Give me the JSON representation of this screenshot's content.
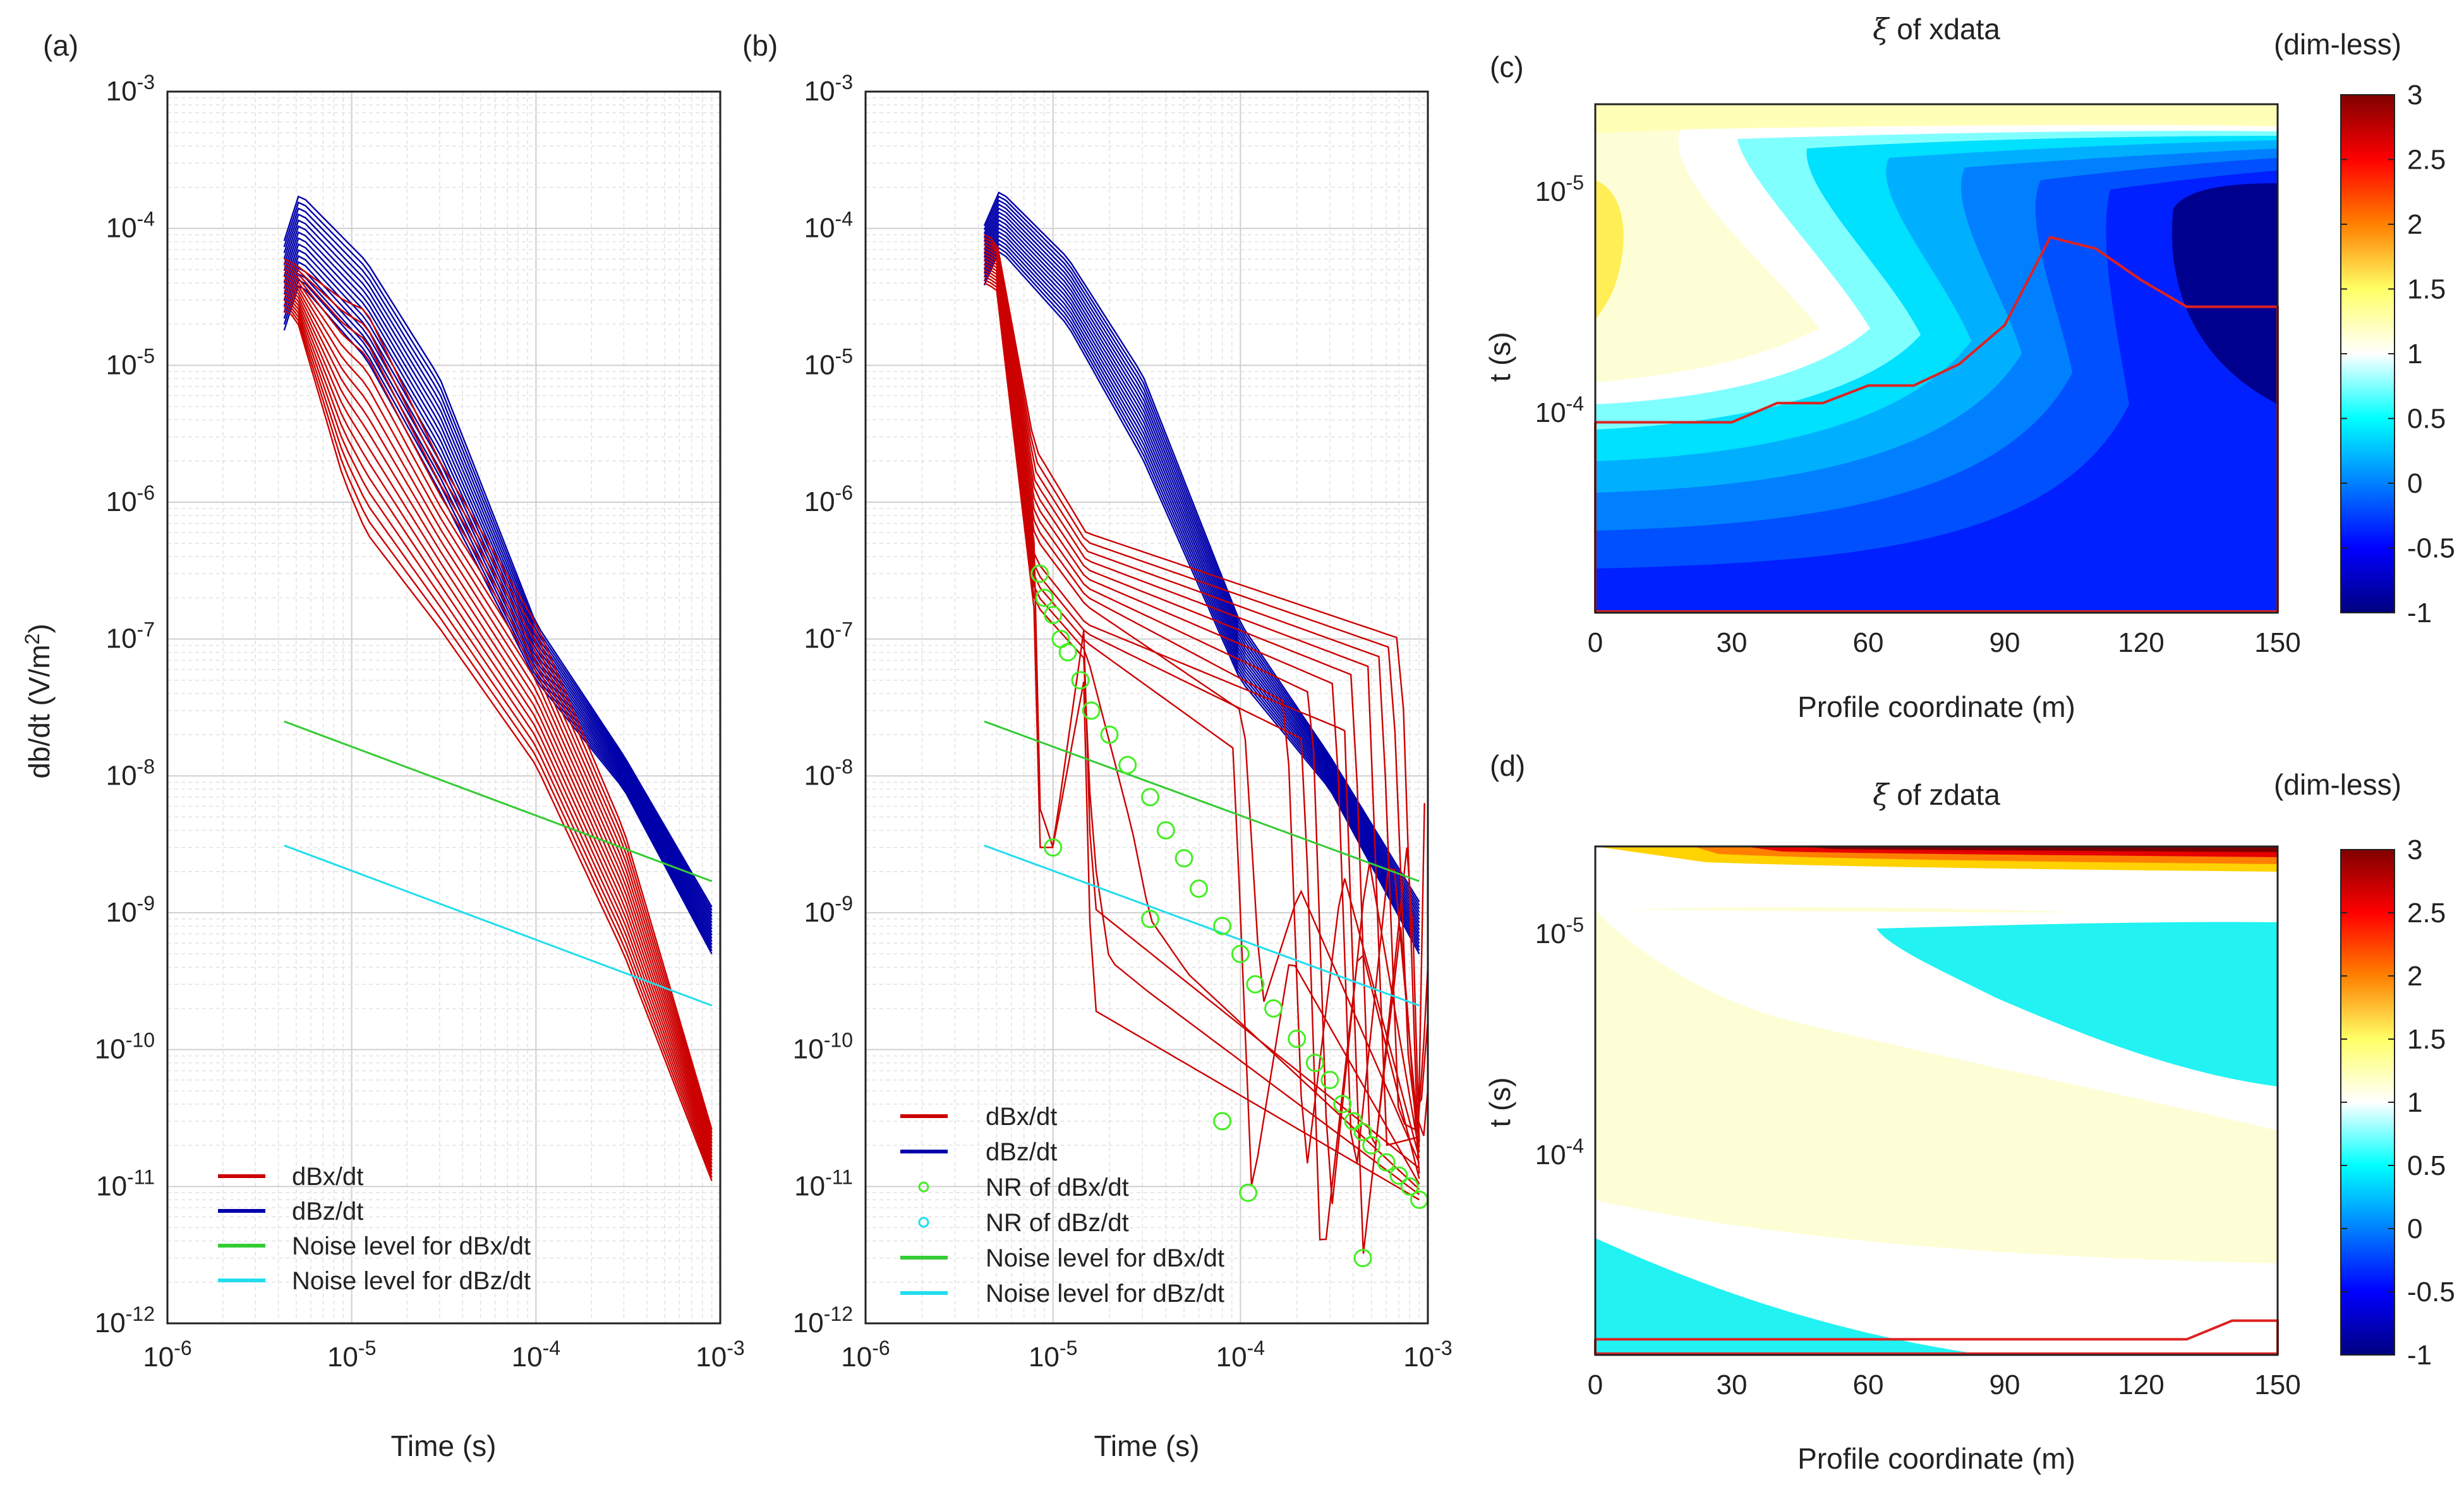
{
  "panels": {
    "a": {
      "label": "(a)"
    },
    "b": {
      "label": "(b)"
    },
    "c": {
      "label": "(c)",
      "title_sym": "ξ",
      "title_rest": " of xdata",
      "unit": "(dim-less)"
    },
    "d": {
      "label": "(d)",
      "title_sym": "ξ",
      "title_rest": " of zdata",
      "unit": "(dim-less)"
    }
  },
  "colors": {
    "dBx": "#cc0000",
    "dBz": "#0000aa",
    "noise_x": "#33cc33",
    "noise_z": "#22ddee",
    "nr_marker": "#44ee22",
    "boundary": "#dd2222"
  },
  "chart_data": [
    {
      "panel": "a",
      "type": "line",
      "xscale": "log",
      "yscale": "log",
      "xlim": [
        1e-06,
        0.001
      ],
      "ylim": [
        1e-12,
        0.001
      ],
      "xlabel": "Time (s)",
      "ylabel": "db/dt (V/m",
      "ylabel_sup": "2",
      "ylabel_end": ")",
      "x_tick_bases": [
        "10",
        "10",
        "10",
        "10"
      ],
      "x_tick_exps": [
        "-6",
        "-5",
        "-4",
        "-3"
      ],
      "x_tick_values": [
        1e-06,
        1e-05,
        0.0001,
        0.001
      ],
      "y_tick_bases": [
        "10",
        "10",
        "10",
        "10",
        "10",
        "10",
        "10",
        "10",
        "10",
        "10"
      ],
      "y_tick_exps": [
        "-12",
        "-11",
        "-10",
        "-9",
        "-8",
        "-7",
        "-6",
        "-5",
        "-4",
        "-3"
      ],
      "y_tick_values": [
        1e-12,
        1e-11,
        1e-10,
        1e-09,
        1e-08,
        1e-07,
        1e-06,
        1e-05,
        0.0001,
        0.001
      ],
      "grid": true,
      "legend_position": "bottom-left",
      "legend": [
        "dBx/dt",
        "dBz/dt",
        "Noise level for dBx/dt",
        "Noise level for dBz/dt"
      ],
      "series_families": {
        "dBz_count": 16,
        "dBz_peak_range": [
          4e-05,
          0.00018
        ],
        "dBz_end_range": [
          5e-10,
          1.1e-09
        ],
        "dBx_count": 16,
        "dBx_peak_range": [
          2.5e-05,
          6e-05
        ],
        "dBx_end_range": [
          1.1e-11,
          2.6e-11
        ]
      },
      "noise_x": {
        "x": [
          4.3e-06,
          0.0009
        ],
        "y": [
          2.5e-08,
          1.7e-09
        ]
      },
      "noise_z": {
        "x": [
          4.3e-06,
          0.0009
        ],
        "y": [
          3.1e-09,
          2.1e-10
        ]
      }
    },
    {
      "panel": "b",
      "type": "line",
      "xscale": "log",
      "yscale": "log",
      "xlim": [
        1e-06,
        0.001
      ],
      "ylim": [
        1e-12,
        0.001
      ],
      "xlabel": "Time (s)",
      "x_tick_bases": [
        "10",
        "10",
        "10",
        "10"
      ],
      "x_tick_exps": [
        "-6",
        "-5",
        "-4",
        "-3"
      ],
      "x_tick_values": [
        1e-06,
        1e-05,
        0.0001,
        0.001
      ],
      "y_tick_bases": [
        "10",
        "10",
        "10",
        "10",
        "10",
        "10",
        "10",
        "10",
        "10",
        "10"
      ],
      "y_tick_exps": [
        "-12",
        "-11",
        "-10",
        "-9",
        "-8",
        "-7",
        "-6",
        "-5",
        "-4",
        "-3"
      ],
      "y_tick_values": [
        1e-12,
        1e-11,
        1e-10,
        1e-09,
        1e-08,
        1e-07,
        1e-06,
        1e-05,
        0.0001,
        0.001
      ],
      "grid": true,
      "legend_position": "bottom-left",
      "legend": [
        "dBx/dt",
        "dBz/dt",
        "NR of dBx/dt",
        "NR of dBz/dt",
        "Noise level for dBx/dt",
        "Noise level for dBz/dt"
      ],
      "series_families": {
        "dBz_count": 16,
        "dBz_peak_range": [
          7e-05,
          0.00019
        ],
        "dBz_end_range": [
          5e-10,
          1.2e-09
        ],
        "dBx_count": 16,
        "dBx_peak_range": [
          4e-05,
          9e-05
        ]
      },
      "noise_x": {
        "x": [
          4.3e-06,
          0.0009
        ],
        "y": [
          2.5e-08,
          1.7e-09
        ]
      },
      "noise_z": {
        "x": [
          4.3e-06,
          0.0009
        ],
        "y": [
          3.1e-09,
          2.1e-10
        ]
      },
      "nr_dBx_points": {
        "x": [
          8.5e-06,
          9e-06,
          1e-05,
          1.1e-05,
          1.2e-05,
          1.4e-05,
          1.6e-05,
          2e-05,
          2.5e-05,
          3.3e-05,
          4e-05,
          5e-05,
          6e-05,
          8e-05,
          0.0001,
          0.00012,
          0.00015,
          0.0002,
          0.00025,
          0.0003,
          0.00035,
          0.0004,
          0.00045,
          0.0005,
          0.0006,
          0.0007,
          0.0008,
          0.0009,
          1e-05,
          3.3e-05,
          8e-05,
          0.00011,
          0.00045
        ],
        "y": [
          3e-07,
          2e-07,
          1.5e-07,
          1e-07,
          8e-08,
          5e-08,
          3e-08,
          2e-08,
          1.2e-08,
          7e-09,
          4e-09,
          2.5e-09,
          1.5e-09,
          8e-10,
          5e-10,
          3e-10,
          2e-10,
          1.2e-10,
          8e-11,
          6e-11,
          4e-11,
          3e-11,
          2.5e-11,
          2e-11,
          1.5e-11,
          1.2e-11,
          1e-11,
          8e-12,
          3e-09,
          9e-10,
          3e-11,
          9e-12,
          3e-12
        ]
      }
    },
    {
      "panel": "c",
      "type": "heatmap",
      "xlabel": "Profile coordinate (m)",
      "ylabel": "t (s)",
      "x_ticks": [
        "0",
        "30",
        "60",
        "90",
        "120",
        "150"
      ],
      "x_tick_values": [
        0,
        30,
        60,
        90,
        120,
        150
      ],
      "xlim": [
        0,
        150
      ],
      "y_tick_bases": [
        "10",
        "10"
      ],
      "y_tick_exps": [
        "-5",
        "-4"
      ],
      "y_tick_values": [
        1e-05,
        0.0001
      ],
      "ylim": [
        4e-06,
        0.0008
      ],
      "colorbar": {
        "ticks": [
          "3",
          "2.5",
          "2",
          "1.5",
          "1",
          "0.5",
          "0",
          "-0.5",
          "-1"
        ],
        "min": -1,
        "max": 3
      },
      "boundary": {
        "x": [
          0,
          30,
          40,
          50,
          60,
          70,
          80,
          90,
          100,
          110,
          120,
          130,
          140,
          150
        ],
        "y": [
          0.00011,
          0.00011,
          9e-05,
          9e-05,
          7.5e-05,
          7.5e-05,
          6e-05,
          4e-05,
          1.6e-05,
          1.8e-05,
          2.5e-05,
          3.3e-05,
          3.3e-05,
          3.3e-05
        ]
      }
    },
    {
      "panel": "d",
      "type": "heatmap",
      "xlabel": "Profile coordinate (m)",
      "ylabel": "t (s)",
      "x_ticks": [
        "0",
        "30",
        "60",
        "90",
        "120",
        "150"
      ],
      "x_tick_values": [
        0,
        30,
        60,
        90,
        120,
        150
      ],
      "xlim": [
        0,
        150
      ],
      "y_tick_bases": [
        "10",
        "10"
      ],
      "y_tick_exps": [
        "-5",
        "-4"
      ],
      "y_tick_values": [
        1e-05,
        0.0001
      ],
      "ylim": [
        4e-06,
        0.0008
      ],
      "colorbar": {
        "ticks": [
          "3",
          "2.5",
          "2",
          "1.5",
          "1",
          "0.5",
          "0",
          "-0.5",
          "-1"
        ],
        "min": -1,
        "max": 3
      },
      "boundary": {
        "x": [
          0,
          130,
          140,
          150
        ],
        "y": [
          0.00068,
          0.00068,
          0.00056,
          0.00056
        ]
      }
    }
  ]
}
